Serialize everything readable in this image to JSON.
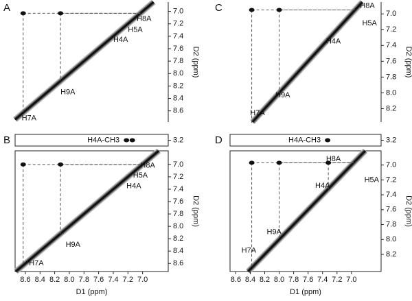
{
  "chart_data": [
    {
      "type": "nmr",
      "panel": "A",
      "ylabel": "D2 (ppm)",
      "xlim": [
        8.74,
        6.65
      ],
      "ylim": [
        6.85,
        8.78
      ],
      "yticks": [
        {
          "value": 7,
          "label": "7.0"
        },
        7.2,
        7.4,
        7.6,
        7.8,
        {
          "value": 8,
          "label": "8.0"
        },
        8.2,
        8.4,
        8.6
      ],
      "peaks": {
        "x": [
          8.63,
          8.12
        ],
        "y": [
          7.03,
          7.03
        ]
      },
      "annotations": [
        {
          "text": "H8A",
          "x": 6.98,
          "y": 7.12
        },
        {
          "text": "H5A",
          "x": 7.1,
          "y": 7.3
        },
        {
          "text": "H4A",
          "x": 7.3,
          "y": 7.46
        },
        {
          "text": "H9A",
          "x": 8.02,
          "y": 8.3
        },
        {
          "text": "H7A",
          "x": 8.55,
          "y": 8.72
        }
      ]
    },
    {
      "type": "nmr",
      "panel": "B",
      "ylabel": "D2 (ppm)",
      "xlabel": "D1 (ppm)",
      "frame": true,
      "xlim": [
        8.74,
        6.65
      ],
      "ylim": [
        6.78,
        8.73
      ],
      "xticks": [
        8.6,
        8.4,
        8.2,
        {
          "value": 8,
          "label": "8.0"
        },
        7.8,
        7.6,
        7.4,
        7.2,
        {
          "value": 7,
          "label": "7.0"
        }
      ],
      "yticks": [
        {
          "value": 7,
          "label": "7.0"
        },
        7.2,
        7.4,
        7.6,
        7.8,
        {
          "value": 8,
          "label": "8.0"
        },
        8.2,
        8.4,
        8.6
      ],
      "strip": {
        "ylim": [
          3.1,
          3.3
        ],
        "yticks": [
          3.2
        ],
        "label": "H4A-CH3",
        "peaks": [
          7.22,
          7.14
        ]
      },
      "peaks": {
        "x": [
          8.63,
          8.12
        ],
        "y": [
          7.0,
          7.0
        ]
      },
      "annotations": [
        {
          "text": "H8A",
          "x": 6.93,
          "y": 7.02
        },
        {
          "text": "H5A",
          "x": 7.03,
          "y": 7.18
        },
        {
          "text": "H4A",
          "x": 7.12,
          "y": 7.35
        },
        {
          "text": "H9A",
          "x": 7.95,
          "y": 8.3
        },
        {
          "text": "H7A",
          "x": 8.45,
          "y": 8.6
        }
      ]
    },
    {
      "type": "nmr",
      "panel": "C",
      "ylabel": "D2 (ppm)",
      "xlim": [
        8.68,
        6.59
      ],
      "ylim": [
        6.85,
        8.37
      ],
      "yticks": [
        {
          "value": 7,
          "label": "7.0"
        },
        7.2,
        7.4,
        7.6,
        7.8,
        {
          "value": 8,
          "label": "8.0"
        },
        8.2
      ],
      "peaks": {
        "x": [
          8.38,
          8.0
        ],
        "y": [
          6.95,
          6.95
        ]
      },
      "annotations": [
        {
          "text": "H8A",
          "x": 6.78,
          "y": 6.9
        },
        {
          "text": "H5A",
          "x": 6.75,
          "y": 7.12
        },
        {
          "text": "H4A",
          "x": 7.25,
          "y": 7.35
        },
        {
          "text": "H9A",
          "x": 7.95,
          "y": 8.03
        },
        {
          "text": "H7A",
          "x": 8.3,
          "y": 8.26
        }
      ]
    },
    {
      "type": "nmr",
      "panel": "D",
      "ylabel": "D2 (ppm)",
      "xlabel": "D1 (ppm)",
      "frame": true,
      "xlim": [
        8.68,
        6.59
      ],
      "ylim": [
        6.81,
        8.43
      ],
      "xticks": [
        8.6,
        8.4,
        8.2,
        {
          "value": 8,
          "label": "8.0"
        },
        7.8,
        7.6,
        7.4,
        7.2,
        {
          "value": 7,
          "label": "7.0"
        }
      ],
      "yticks": [
        {
          "value": 7,
          "label": "7.0"
        },
        7.2,
        7.4,
        7.6,
        7.8,
        {
          "value": 8,
          "label": "8.0"
        },
        8.2
      ],
      "strip": {
        "ylim": [
          3.1,
          3.3
        ],
        "yticks": [
          3.2
        ],
        "label": "H4A-CH3",
        "peaks": [
          7.33
        ]
      },
      "peaks": {
        "x": [
          8.38,
          8.0,
          7.32
        ],
        "y": [
          6.97,
          6.97,
          6.97
        ]
      },
      "annotations": [
        {
          "text": "H8A",
          "x": 7.25,
          "y": 6.92
        },
        {
          "text": "H5A",
          "x": 6.72,
          "y": 7.2
        },
        {
          "text": "H4A",
          "x": 7.4,
          "y": 7.28
        },
        {
          "text": "H9A",
          "x": 8.07,
          "y": 7.9
        },
        {
          "text": "H7A",
          "x": 8.42,
          "y": 8.15
        }
      ]
    }
  ]
}
